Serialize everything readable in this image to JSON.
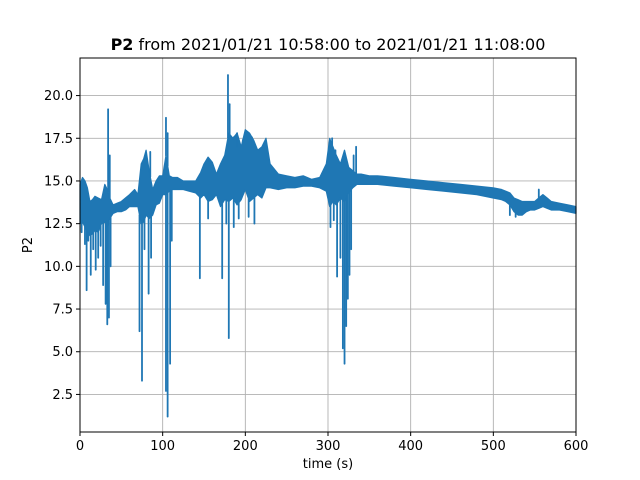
{
  "chart_data": {
    "type": "line",
    "title_bold": "P2",
    "title_rest": " from 2021/01/21 10:58:00 to 2021/01/21 11:08:00",
    "xlabel": "time (s)",
    "ylabel": "P2",
    "xlim": [
      0,
      600
    ],
    "ylim": [
      0.3,
      22.2
    ],
    "xticks": [
      0,
      100,
      200,
      300,
      400,
      500,
      600
    ],
    "yticks": [
      2.5,
      5.0,
      7.5,
      10.0,
      12.5,
      15.0,
      17.5,
      20.0
    ],
    "ytick_labels": [
      "2.5",
      "5.0",
      "7.5",
      "10.0",
      "12.5",
      "15.0",
      "17.5",
      "20.0"
    ],
    "grid": true,
    "series_color": "#1f77b4",
    "series": [
      {
        "envelope": {
          "x": [
            0,
            3,
            6,
            9,
            12,
            15,
            18,
            22,
            26,
            30,
            33,
            36,
            40,
            45,
            50,
            55,
            60,
            66,
            70,
            74,
            77,
            80,
            84,
            88,
            92,
            96,
            100,
            104,
            108,
            112,
            118,
            125,
            132,
            140,
            146,
            150,
            155,
            160,
            165,
            170,
            175,
            180,
            185,
            190,
            195,
            200,
            205,
            210,
            215,
            220,
            225,
            230,
            240,
            250,
            260,
            270,
            280,
            290,
            298,
            302,
            306,
            310,
            315,
            320,
            325,
            330,
            335,
            340,
            350,
            360,
            380,
            400,
            420,
            440,
            460,
            480,
            500,
            510,
            515,
            520,
            525,
            530,
            535,
            540,
            545,
            550,
            555,
            560,
            565,
            570,
            580,
            590,
            600
          ],
          "upper": [
            14.8,
            15.2,
            15.0,
            14.6,
            13.8,
            13.9,
            14.1,
            14.0,
            13.9,
            14.8,
            14.5,
            14.0,
            13.6,
            13.7,
            13.8,
            14.0,
            14.2,
            14.5,
            14.2,
            16.0,
            16.3,
            16.8,
            15.5,
            14.5,
            15.0,
            15.3,
            15.3,
            16.5,
            15.3,
            15.2,
            15.2,
            15.0,
            15.0,
            15.0,
            15.5,
            16.0,
            16.4,
            16.1,
            15.4,
            16.0,
            16.5,
            17.8,
            17.5,
            17.8,
            17.0,
            18.0,
            17.8,
            17.4,
            16.8,
            17.0,
            17.5,
            16.0,
            15.4,
            15.3,
            15.2,
            15.3,
            15.1,
            15.2,
            16.0,
            17.5,
            17.0,
            16.5,
            16.0,
            16.8,
            15.8,
            15.6,
            15.4,
            15.4,
            15.3,
            15.3,
            15.2,
            15.1,
            15.0,
            14.9,
            14.8,
            14.7,
            14.6,
            14.5,
            14.4,
            14.3,
            14.0,
            13.9,
            13.8,
            13.8,
            13.8,
            13.8,
            14.0,
            14.2,
            14.0,
            13.8,
            13.7,
            13.6,
            13.5
          ],
          "lower": [
            12.5,
            12.6,
            12.3,
            12.0,
            11.8,
            11.9,
            12.1,
            12.0,
            12.5,
            12.6,
            12.3,
            12.8,
            13.1,
            13.2,
            13.2,
            13.3,
            13.5,
            13.5,
            13.5,
            12.5,
            12.6,
            13.0,
            12.8,
            13.0,
            13.6,
            13.7,
            14.2,
            14.2,
            14.4,
            14.5,
            14.5,
            14.5,
            14.4,
            14.3,
            14.0,
            14.2,
            13.8,
            13.9,
            14.2,
            13.5,
            13.9,
            13.8,
            14.0,
            13.6,
            13.9,
            14.5,
            13.8,
            14.0,
            14.2,
            14.0,
            14.6,
            14.6,
            14.5,
            14.6,
            14.6,
            14.7,
            14.7,
            14.6,
            14.4,
            13.5,
            13.8,
            13.6,
            14.0,
            13.8,
            14.3,
            14.6,
            14.8,
            14.8,
            14.8,
            14.8,
            14.7,
            14.6,
            14.5,
            14.4,
            14.3,
            14.2,
            14.0,
            13.9,
            13.8,
            13.6,
            13.2,
            13.0,
            13.0,
            13.2,
            13.3,
            13.3,
            13.4,
            13.5,
            13.4,
            13.3,
            13.3,
            13.2,
            13.1
          ]
        },
        "dips": [
          {
            "x": 2,
            "y": 12.0
          },
          {
            "x": 6,
            "y": 11.3
          },
          {
            "x": 8,
            "y": 8.6
          },
          {
            "x": 10,
            "y": 11.5
          },
          {
            "x": 13,
            "y": 9.5
          },
          {
            "x": 16,
            "y": 11.0
          },
          {
            "x": 19,
            "y": 9.8
          },
          {
            "x": 22,
            "y": 10.5
          },
          {
            "x": 25,
            "y": 11.2
          },
          {
            "x": 28,
            "y": 8.9
          },
          {
            "x": 31,
            "y": 7.8
          },
          {
            "x": 33,
            "y": 6.6
          },
          {
            "x": 35,
            "y": 7.0
          },
          {
            "x": 37,
            "y": 10.0
          },
          {
            "x": 72,
            "y": 6.2
          },
          {
            "x": 75,
            "y": 3.3
          },
          {
            "x": 78,
            "y": 11.0
          },
          {
            "x": 83,
            "y": 8.4
          },
          {
            "x": 86,
            "y": 10.5
          },
          {
            "x": 104,
            "y": 2.7
          },
          {
            "x": 106,
            "y": 1.2
          },
          {
            "x": 109,
            "y": 4.3
          },
          {
            "x": 111,
            "y": 11.5
          },
          {
            "x": 145,
            "y": 9.3
          },
          {
            "x": 155,
            "y": 12.8
          },
          {
            "x": 172,
            "y": 9.3
          },
          {
            "x": 177,
            "y": 12.5
          },
          {
            "x": 180,
            "y": 5.8
          },
          {
            "x": 186,
            "y": 12.3
          },
          {
            "x": 192,
            "y": 12.8
          },
          {
            "x": 204,
            "y": 12.9
          },
          {
            "x": 211,
            "y": 12.5
          },
          {
            "x": 303,
            "y": 12.3
          },
          {
            "x": 307,
            "y": 12.7
          },
          {
            "x": 311,
            "y": 9.4
          },
          {
            "x": 315,
            "y": 10.5
          },
          {
            "x": 318,
            "y": 5.2
          },
          {
            "x": 320,
            "y": 4.3
          },
          {
            "x": 322,
            "y": 6.5
          },
          {
            "x": 324,
            "y": 8.1
          },
          {
            "x": 326,
            "y": 9.5
          },
          {
            "x": 328,
            "y": 11.0
          },
          {
            "x": 520,
            "y": 13.0
          },
          {
            "x": 527,
            "y": 12.9
          }
        ],
        "spikes": [
          {
            "x": 34,
            "y": 19.2
          },
          {
            "x": 36,
            "y": 16.5
          },
          {
            "x": 104,
            "y": 18.7
          },
          {
            "x": 106,
            "y": 17.8
          },
          {
            "x": 179,
            "y": 21.2
          },
          {
            "x": 181,
            "y": 19.5
          },
          {
            "x": 186,
            "y": 17.5
          },
          {
            "x": 190,
            "y": 17.0
          },
          {
            "x": 197,
            "y": 17.2
          },
          {
            "x": 208,
            "y": 17.0
          },
          {
            "x": 305,
            "y": 17.5
          },
          {
            "x": 309,
            "y": 16.8
          },
          {
            "x": 331,
            "y": 16.5
          },
          {
            "x": 334,
            "y": 17.0
          },
          {
            "x": 85,
            "y": 16.7
          },
          {
            "x": 555,
            "y": 14.5
          }
        ]
      }
    ]
  }
}
